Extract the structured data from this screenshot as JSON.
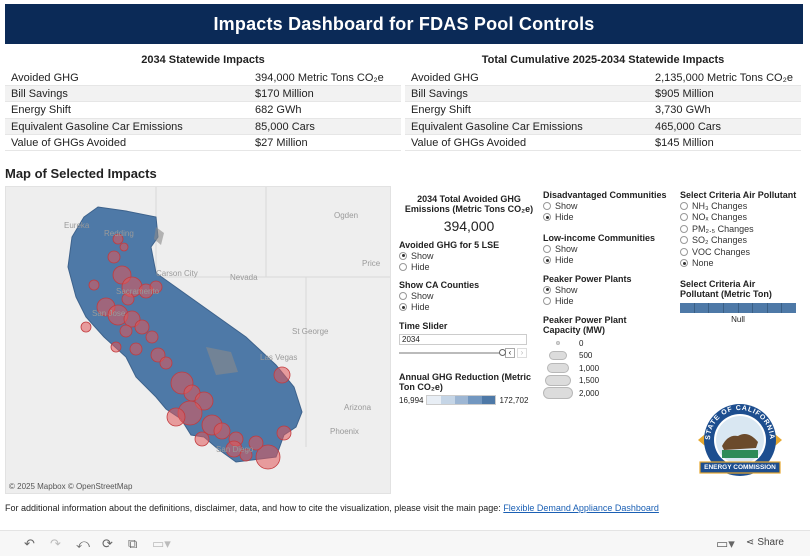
{
  "title": "Impacts Dashboard for FDAS Pool Controls",
  "table_2034": {
    "header": "2034 Statewide Impacts",
    "rows": [
      {
        "label": "Avoided GHG",
        "value": "394,000 Metric Tons CO₂e"
      },
      {
        "label": "Bill Savings",
        "value": "$170 Million"
      },
      {
        "label": "Energy Shift",
        "value": "682 GWh"
      },
      {
        "label": "Equivalent Gasoline Car Emissions",
        "value": "85,000 Cars"
      },
      {
        "label": "Value of GHGs Avoided",
        "value": "$27 Million"
      }
    ]
  },
  "table_cumulative": {
    "header": "Total Cumulative 2025-2034 Statewide Impacts",
    "rows": [
      {
        "label": "Avoided GHG",
        "value": "2,135,000 Metric Tons CO₂e"
      },
      {
        "label": "Bill Savings",
        "value": "$905 Million"
      },
      {
        "label": "Energy Shift",
        "value": "3,730 GWh"
      },
      {
        "label": "Equivalent Gasoline Car Emissions",
        "value": "465,000 Cars"
      },
      {
        "label": "Value of GHGs Avoided",
        "value": "$145 Million"
      }
    ]
  },
  "map": {
    "title": "Map of Selected Impacts",
    "credit": "© 2025 Mapbox  © OpenStreetMap",
    "cities": [
      "Eureka",
      "Redding",
      "Ogden",
      "Carson City",
      "Nevada",
      "Price",
      "Sacramento",
      "San Jose",
      "St George",
      "Las Vegas",
      "Arizona",
      "Phoenix",
      "San Diego"
    ]
  },
  "controls": {
    "total_title": "2034 Total Avoided GHG Emissions (Metric Tons CO₂e)",
    "total_value": "394,000",
    "lse_title": "Avoided GHG for 5 LSE",
    "lse_options": [
      "Show",
      "Hide"
    ],
    "lse_selected": "Show",
    "counties_title": "Show CA Counties",
    "counties_options": [
      "Show",
      "Hide"
    ],
    "counties_selected": "Hide",
    "slider_title": "Time Slider",
    "slider_value": "2034",
    "annual_title": "Annual GHG Reduction (Metric Ton CO₂e)",
    "annual_min": "16,994",
    "annual_max": "172,702",
    "dac_title": "Disadvantaged Communities",
    "dac_options": [
      "Show",
      "Hide"
    ],
    "dac_selected": "Hide",
    "li_title": "Low-income Communities",
    "li_options": [
      "Show",
      "Hide"
    ],
    "li_selected": "Hide",
    "peaker_title": "Peaker Power Plants",
    "peaker_options": [
      "Show",
      "Hide"
    ],
    "peaker_selected": "Show",
    "capacity_title": "Peaker Power Plant Capacity (MW)",
    "capacity_levels": [
      "0",
      "500",
      "1,000",
      "1,500",
      "2,000"
    ],
    "pollutant_title": "Select Criteria Air Pollutant",
    "pollutant_options": [
      "NH₃ Changes",
      "NOₓ Changes",
      "PM₂.₅ Changes",
      "SO₂ Changes",
      "VOC Changes",
      "None"
    ],
    "pollutant_selected": "None",
    "pollutant_scale_title": "Select Criteria Air Pollutant (Metric Ton)",
    "pollutant_scale_value": "Null"
  },
  "logo": {
    "ring_top": "STATE OF CALIFORNIA",
    "banner": "ENERGY COMMISSION"
  },
  "footer": {
    "text": "For additional information about the definitions, disclaimer, data, and how to cite the visualization, please visit the main page:",
    "link": "Flexible Demand Appliance Dashboard"
  },
  "toolbar": {
    "share_label": "Share"
  },
  "colors": {
    "title_bar": "#0b2a57",
    "map_fill": "#4e79a7",
    "impact_circle": "#e15759"
  }
}
